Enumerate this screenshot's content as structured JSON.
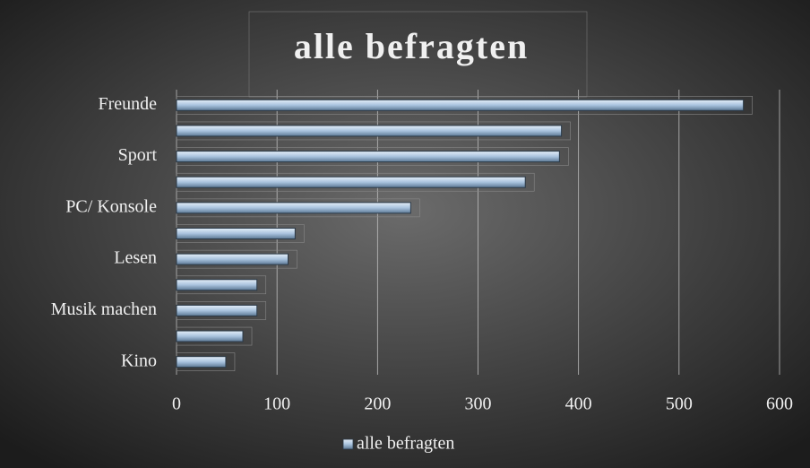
{
  "chart_data": {
    "type": "bar",
    "orientation": "horizontal",
    "title": "alle befragten",
    "categories": [
      "Freunde",
      null,
      "Sport",
      null,
      "PC/ Konsole",
      null,
      "Lesen",
      null,
      "Musik machen",
      null,
      "Kino"
    ],
    "series": [
      {
        "name": "alle befragten",
        "color": "#a9c3de",
        "values": [
          564,
          383,
          381,
          347,
          233,
          118,
          111,
          80,
          80,
          66,
          49
        ]
      }
    ],
    "xlim": [
      0,
      600
    ],
    "xticks": [
      0,
      100,
      200,
      300,
      400,
      500,
      600
    ],
    "grid": true,
    "legend": "bottom"
  }
}
